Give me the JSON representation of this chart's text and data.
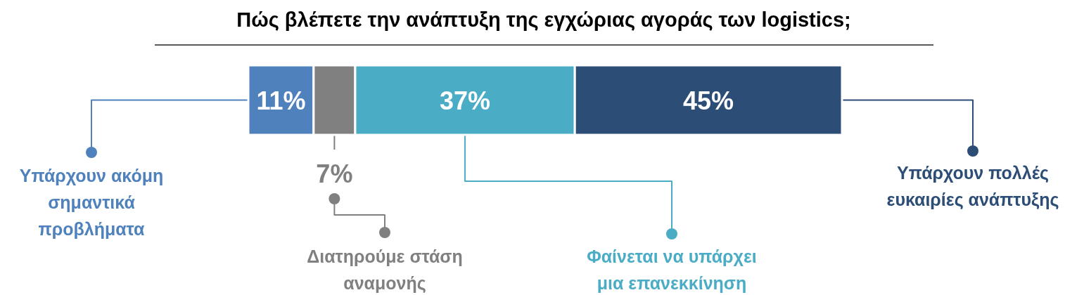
{
  "chart_data": {
    "type": "bar",
    "orientation": "horizontal",
    "stacked": true,
    "title": "Πώς βλέπετε την ανάπτυξη της εγχώριας αγοράς των logistics;",
    "categories": [
      null
    ],
    "legend": "bottom",
    "series": [
      {
        "name": "Υπάρχουν ακόμη σημαντικά προβλήματα",
        "color": "#4f81bd",
        "values": [
          11
        ],
        "value_labels": [
          "11%"
        ]
      },
      {
        "name": "Διατηρούμε στάση αναμονής",
        "color": "#808080",
        "values": [
          7
        ],
        "value_labels": [
          "7%"
        ]
      },
      {
        "name": "Φαίνεται να υπάρχει μια επανεκκίνηση",
        "color": "#4bacc6",
        "values": [
          37
        ],
        "value_labels": [
          "37%"
        ]
      },
      {
        "name": "Υπάρχουν πολλές ευκαιρίες ανάπτυξης",
        "color": "#2c4d75",
        "values": [
          45
        ],
        "value_labels": [
          "45%"
        ]
      }
    ]
  }
}
